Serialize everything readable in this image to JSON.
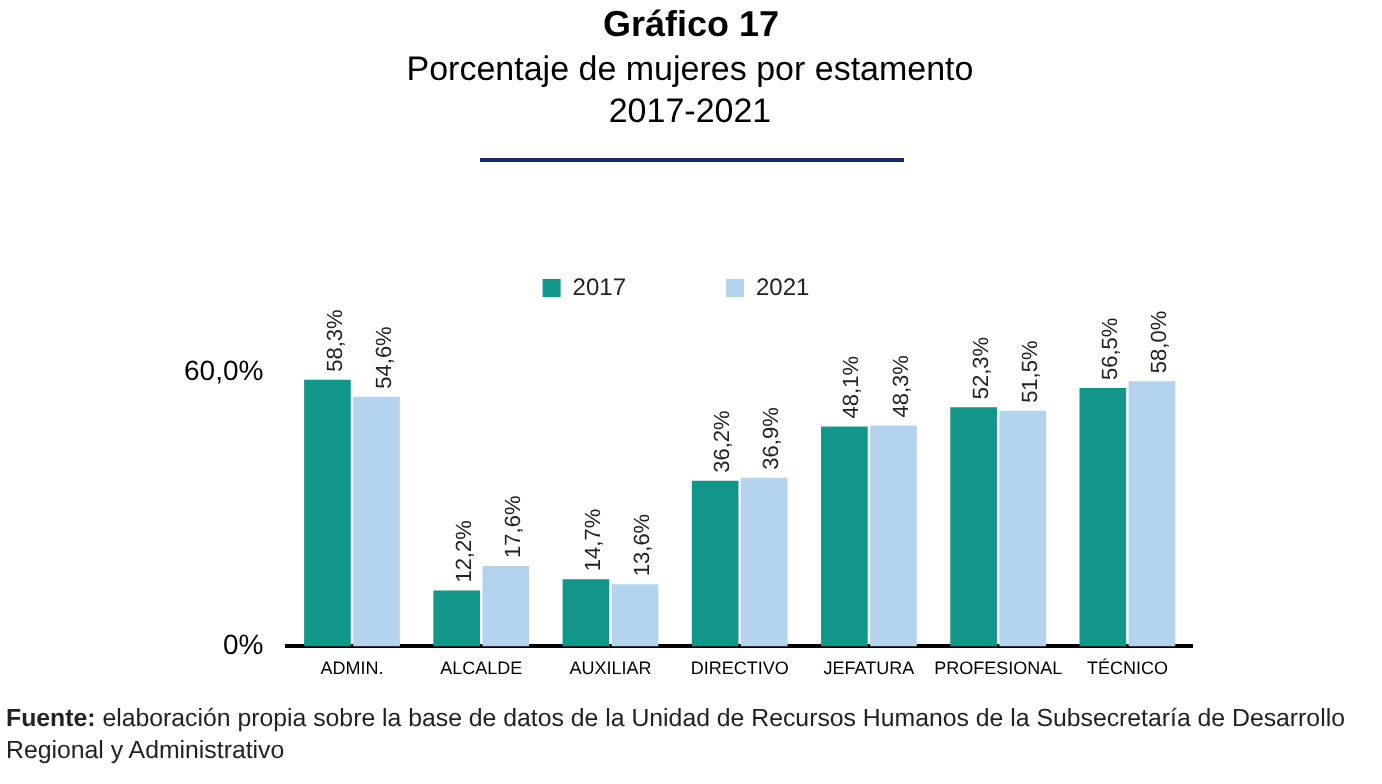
{
  "chart_data": {
    "type": "bar",
    "title": "Gráfico 17",
    "subtitle": "Porcentaje de mujeres por estamento 2017-2021",
    "categories": [
      "ADMIN.",
      "ALCALDE",
      "AUXILIAR",
      "DIRECTIVO",
      "JEFATURA",
      "PROFESIONAL",
      "TÉCNICO"
    ],
    "series": [
      {
        "name": "2017",
        "color": "#12968a",
        "values": [
          58.3,
          12.2,
          14.7,
          36.2,
          48.1,
          52.3,
          56.5
        ],
        "value_labels": [
          "58,3%",
          "12,2%",
          "14,7%",
          "36,2%",
          "48,1%",
          "52,3%",
          "56,5%"
        ]
      },
      {
        "name": "2021",
        "color": "#b4d3ef",
        "values": [
          54.6,
          17.6,
          13.6,
          36.9,
          48.3,
          51.5,
          58.0
        ],
        "value_labels": [
          "54,6%",
          "17,6%",
          "13,6%",
          "36,9%",
          "48,3%",
          "51,5%",
          "58,0%"
        ]
      }
    ],
    "ylim": [
      0,
      60
    ],
    "yticks": [
      {
        "value": 0,
        "label": "0%"
      },
      {
        "value": 60,
        "label": "60,0%"
      }
    ],
    "grid": false,
    "legend": "top",
    "annotations": [
      "Fuente: elaboración propia sobre la base de datos de la Unidad de Recursos Humanos de la Subsecretaría de Desarrollo Regional y Administrativo"
    ]
  }
}
